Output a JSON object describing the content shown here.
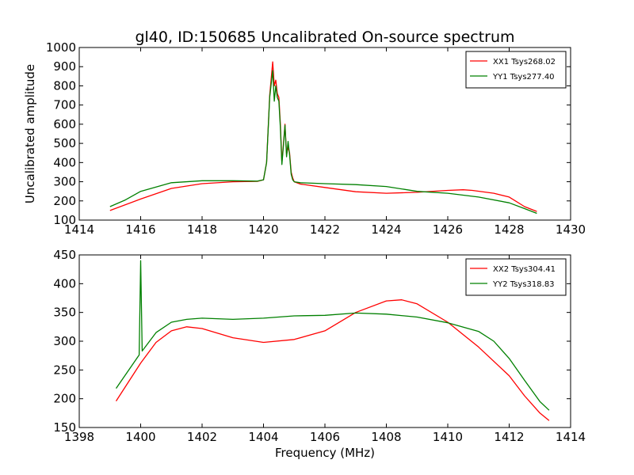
{
  "chart_data": [
    {
      "type": "line",
      "title": "gl40, ID:150685 Uncalibrated On-source spectrum",
      "xlabel": "",
      "ylabel": "Uncalibrated amplitude",
      "xlim": [
        1414,
        1430
      ],
      "ylim": [
        100,
        1000
      ],
      "xticks": [
        1414,
        1416,
        1418,
        1420,
        1422,
        1424,
        1426,
        1428,
        1430
      ],
      "yticks": [
        100,
        200,
        300,
        400,
        500,
        600,
        700,
        800,
        900,
        1000
      ],
      "legend_position": "top-right",
      "series": [
        {
          "name": "XX1 Tsys268.02",
          "color": "#ff0000",
          "x": [
            1415.0,
            1416.0,
            1417.0,
            1418.0,
            1419.0,
            1419.8,
            1420.0,
            1420.1,
            1420.2,
            1420.3,
            1420.35,
            1420.4,
            1420.45,
            1420.5,
            1420.55,
            1420.6,
            1420.65,
            1420.7,
            1420.75,
            1420.8,
            1420.85,
            1420.9,
            1420.95,
            1421.0,
            1421.2,
            1422.0,
            1423.0,
            1424.0,
            1425.0,
            1426.0,
            1426.5,
            1426.8,
            1427.5,
            1428.0,
            1428.5,
            1428.9
          ],
          "y": [
            150,
            210,
            265,
            290,
            300,
            302,
            310,
            400,
            750,
            925,
            800,
            830,
            760,
            740,
            600,
            400,
            500,
            600,
            440,
            480,
            450,
            350,
            320,
            300,
            288,
            270,
            248,
            240,
            245,
            255,
            258,
            255,
            240,
            220,
            170,
            145
          ]
        },
        {
          "name": "YY1 Tsys277.40",
          "color": "#008000",
          "x": [
            1415.0,
            1415.5,
            1416.0,
            1417.0,
            1418.0,
            1419.0,
            1419.8,
            1420.0,
            1420.1,
            1420.2,
            1420.3,
            1420.35,
            1420.4,
            1420.45,
            1420.5,
            1420.55,
            1420.6,
            1420.65,
            1420.7,
            1420.75,
            1420.8,
            1420.85,
            1420.9,
            1420.95,
            1421.0,
            1421.2,
            1422.0,
            1423.0,
            1424.0,
            1425.0,
            1426.0,
            1427.0,
            1428.0,
            1428.5,
            1428.9
          ],
          "y": [
            170,
            205,
            250,
            295,
            305,
            305,
            303,
            310,
            400,
            740,
            880,
            720,
            800,
            740,
            720,
            580,
            390,
            490,
            595,
            430,
            510,
            440,
            340,
            310,
            300,
            295,
            290,
            285,
            275,
            250,
            240,
            220,
            190,
            160,
            135
          ]
        }
      ]
    },
    {
      "type": "line",
      "title": "",
      "xlabel": "Frequency (MHz)",
      "ylabel": "",
      "xlim": [
        1398,
        1414
      ],
      "ylim": [
        150,
        450
      ],
      "xticks": [
        1398,
        1400,
        1402,
        1404,
        1406,
        1408,
        1410,
        1412,
        1414
      ],
      "yticks": [
        150,
        200,
        250,
        300,
        350,
        400,
        450
      ],
      "legend_position": "top-right",
      "series": [
        {
          "name": "XX2 Tsys304.41",
          "color": "#ff0000",
          "x": [
            1399.2,
            1400.0,
            1400.5,
            1401.0,
            1401.5,
            1402.0,
            1403.0,
            1404.0,
            1405.0,
            1406.0,
            1407.0,
            1408.0,
            1408.5,
            1409.0,
            1410.0,
            1411.0,
            1412.0,
            1412.5,
            1413.0,
            1413.3
          ],
          "y": [
            196,
            262,
            298,
            318,
            325,
            322,
            306,
            298,
            303,
            318,
            350,
            370,
            372,
            365,
            333,
            290,
            240,
            205,
            175,
            162
          ]
        },
        {
          "name": "YY2 Tsys318.83",
          "color": "#008000",
          "x": [
            1399.2,
            1399.9,
            1399.95,
            1400.0,
            1400.05,
            1400.5,
            1401.0,
            1401.5,
            1402.0,
            1403.0,
            1404.0,
            1405.0,
            1406.0,
            1407.0,
            1408.0,
            1409.0,
            1410.0,
            1411.0,
            1411.5,
            1412.0,
            1412.5,
            1413.0,
            1413.3
          ],
          "y": [
            218,
            272,
            276,
            440,
            283,
            315,
            333,
            338,
            340,
            338,
            340,
            344,
            345,
            349,
            347,
            342,
            332,
            317,
            300,
            270,
            232,
            195,
            180
          ]
        }
      ]
    }
  ]
}
